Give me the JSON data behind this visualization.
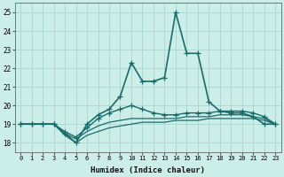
{
  "xlabel": "Humidex (Indice chaleur)",
  "background_color": "#cceee8",
  "grid_color": "#aad4ce",
  "line_color": "#1a6b6b",
  "xlim": [
    -0.5,
    23.5
  ],
  "ylim": [
    17.5,
    25.5
  ],
  "yticks": [
    18,
    19,
    20,
    21,
    22,
    23,
    24,
    25
  ],
  "xticks": [
    0,
    1,
    2,
    3,
    4,
    5,
    6,
    7,
    8,
    9,
    10,
    11,
    12,
    13,
    14,
    15,
    16,
    17,
    18,
    19,
    20,
    21,
    22,
    23
  ],
  "series": [
    {
      "x": [
        0,
        1,
        2,
        3,
        4,
        5,
        6,
        7,
        8,
        9,
        10,
        11,
        12,
        13,
        14,
        15,
        16,
        17,
        18,
        19,
        20,
        21,
        22,
        23
      ],
      "y": [
        19,
        19,
        19,
        19,
        18.5,
        18.0,
        19.0,
        19.5,
        19.8,
        20.5,
        22.3,
        21.3,
        21.3,
        21.5,
        25.0,
        22.8,
        22.8,
        20.2,
        19.7,
        19.6,
        19.6,
        19.4,
        19.0,
        19.0
      ],
      "marker": "+",
      "linewidth": 1.2,
      "markersize": 4
    },
    {
      "x": [
        0,
        1,
        2,
        3,
        4,
        5,
        6,
        7,
        8,
        9,
        10,
        11,
        12,
        13,
        14,
        15,
        16,
        17,
        18,
        19,
        20,
        21,
        22,
        23
      ],
      "y": [
        19,
        19,
        19,
        19,
        18.6,
        18.3,
        18.8,
        19.3,
        19.6,
        19.8,
        20.0,
        19.8,
        19.6,
        19.5,
        19.5,
        19.6,
        19.6,
        19.6,
        19.7,
        19.7,
        19.7,
        19.6,
        19.4,
        19.0
      ],
      "marker": "+",
      "linewidth": 1.0,
      "markersize": 4
    },
    {
      "x": [
        0,
        1,
        2,
        3,
        4,
        5,
        6,
        7,
        8,
        9,
        10,
        11,
        12,
        13,
        14,
        15,
        16,
        17,
        18,
        19,
        20,
        21,
        22,
        23
      ],
      "y": [
        19,
        19,
        19,
        19,
        18.5,
        18.2,
        18.6,
        18.9,
        19.1,
        19.2,
        19.3,
        19.3,
        19.3,
        19.3,
        19.3,
        19.4,
        19.4,
        19.4,
        19.5,
        19.5,
        19.5,
        19.4,
        19.3,
        19.0
      ],
      "marker": null,
      "linewidth": 0.9,
      "markersize": 0
    },
    {
      "x": [
        0,
        1,
        2,
        3,
        4,
        5,
        6,
        7,
        8,
        9,
        10,
        11,
        12,
        13,
        14,
        15,
        16,
        17,
        18,
        19,
        20,
        21,
        22,
        23
      ],
      "y": [
        19,
        19,
        19,
        19,
        18.4,
        18.0,
        18.4,
        18.6,
        18.8,
        18.9,
        19.0,
        19.1,
        19.1,
        19.1,
        19.2,
        19.2,
        19.2,
        19.3,
        19.3,
        19.3,
        19.3,
        19.3,
        19.2,
        19.0
      ],
      "marker": null,
      "linewidth": 0.9,
      "markersize": 0
    }
  ]
}
